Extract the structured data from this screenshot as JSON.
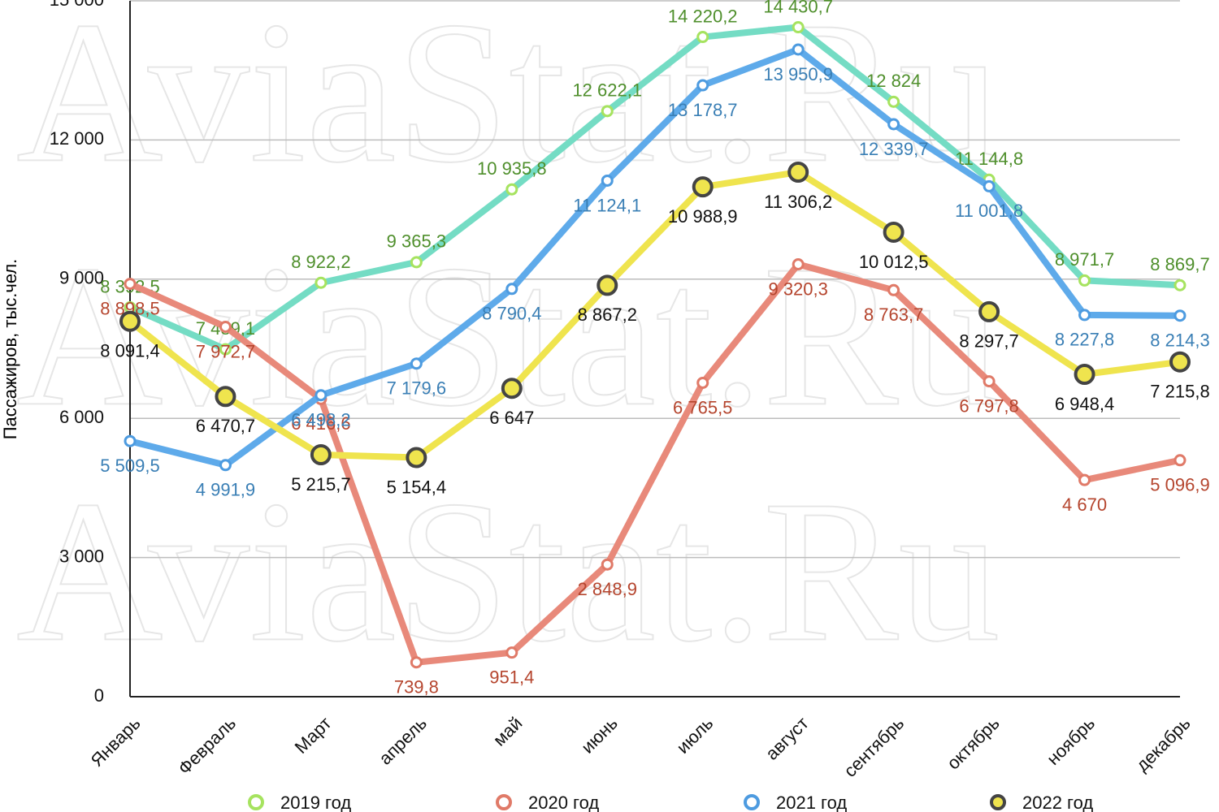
{
  "chart_data": {
    "type": "line",
    "y_label": "Пассажиров, тыс.чел.",
    "watermark": "AviaStat.Ru",
    "categories": [
      "Январь",
      "Февраль",
      "Март",
      "апрель",
      "май",
      "июнь",
      "июль",
      "август",
      "сентябрь",
      "октябрь",
      "ноябрь",
      "декабрь"
    ],
    "ylim": [
      0,
      15000
    ],
    "yticks": [
      {
        "value": 0,
        "label": "0"
      },
      {
        "value": 3000,
        "label": "3 000"
      },
      {
        "value": 6000,
        "label": "6 000"
      },
      {
        "value": 9000,
        "label": "9 000"
      },
      {
        "value": 12000,
        "label": "12 000"
      },
      {
        "value": 15000,
        "label": "15 000"
      }
    ],
    "grid": true,
    "legend": "bottom",
    "series": [
      {
        "name": "2019 год",
        "color": "#74dcc4",
        "marker_color": "#a6e35f",
        "label_color": "#4f8f2c",
        "values": [
          8392.5,
          7489.1,
          8922.2,
          9365.3,
          10935.8,
          12622.1,
          14220.2,
          14430.7,
          12824,
          11144.8,
          8971.7,
          8869.7
        ],
        "value_labels": [
          "8 392,5",
          "7 489,1",
          "8 922,2",
          "9 365,3",
          "10 935,8",
          "12 622,1",
          "14 220,2",
          "14 430,7",
          "12 824",
          "11 144,8",
          "8 971,7",
          "8 869,7"
        ]
      },
      {
        "name": "2020 год",
        "color": "#e8897a",
        "marker_color": "#e07a68",
        "label_color": "#b5452e",
        "values": [
          8898.5,
          7972.7,
          6416.6,
          739.8,
          951.4,
          2848.9,
          6765.5,
          9320.3,
          8763.7,
          6797.8,
          4670,
          5096.9
        ],
        "value_labels": [
          "8 898,5",
          "7 972,7",
          "6 416,6",
          "739,8",
          "951,4",
          "2 848,9",
          "6 765,5",
          "9 320,3",
          "8 763,7",
          "6 797,8",
          "4 670",
          "5 096,9"
        ]
      },
      {
        "name": "2021 год",
        "color": "#5eaaea",
        "marker_color": "#4d9be0",
        "label_color": "#3a7fb5",
        "values": [
          5509.5,
          4991.9,
          6498.2,
          7179.6,
          8790.4,
          11124.1,
          13178.7,
          13950.9,
          12339.7,
          11001.8,
          8227.8,
          8214.3
        ],
        "value_labels": [
          "5 509,5",
          "4 991,9",
          "6 498,2",
          "7 179,6",
          "8 790,4",
          "11 124,1",
          "13 178,7",
          "13 950,9",
          "12 339,7",
          "11 001,8",
          "8 227,8",
          "8 214,3"
        ]
      },
      {
        "name": "2022 год",
        "color": "#efe44e",
        "marker_color": "#444444",
        "label_color": "#111111",
        "values": [
          8091.4,
          6470.7,
          5215.7,
          5154.4,
          6647,
          8867.2,
          10988.9,
          11306.2,
          10012.5,
          8297.7,
          6948.4,
          7215.8
        ],
        "value_labels": [
          "8 091,4",
          "6 470,7",
          "5 215,7",
          "5 154,4",
          "6 647",
          "8 867,2",
          "10 988,9",
          "11 306,2",
          "10 012,5",
          "8 297,7",
          "6 948,4",
          "7 215,8"
        ]
      }
    ]
  }
}
